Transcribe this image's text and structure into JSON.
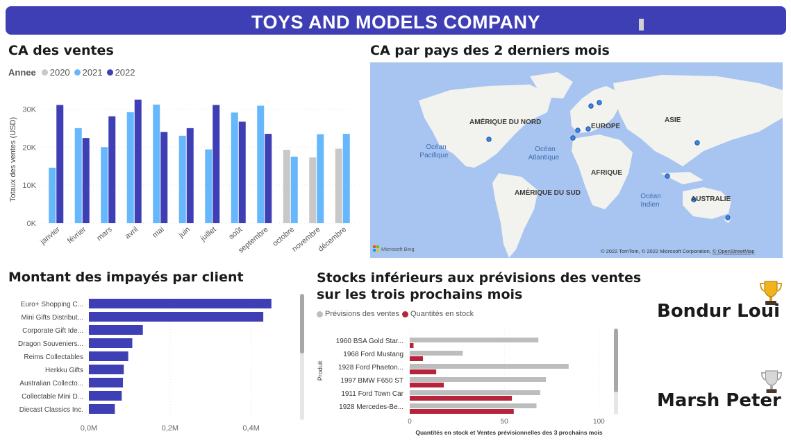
{
  "header": {
    "title": "TOYS AND MODELS COMPANY"
  },
  "sales_chart": {
    "title": "CA des ventes",
    "legend_title": "Annee",
    "y_axis_label": "Totaux des ventes (USD)",
    "y_tick_labels": [
      "0K",
      "10K",
      "20K",
      "30K"
    ],
    "colors": {
      "2020": "#c8c8c8",
      "2021": "#66b7fb",
      "2022": "#3f3fb5"
    }
  },
  "map_panel": {
    "title": "CA par pays des 2 derniers mois",
    "continents": [
      "AMÉRIQUE DU NORD",
      "EUROPE",
      "ASIE",
      "AFRIQUE",
      "AMÉRIQUE DU SUD",
      "AUSTRALIE"
    ],
    "ocean_pacific": [
      "Océan",
      "Pacifique"
    ],
    "ocean_atlantic": [
      "Océan",
      "Atlantique"
    ],
    "ocean_indian": [
      "Océan",
      "Indien"
    ],
    "bing_label": "Microsoft Bing",
    "attribution": "© 2022 TomTom, © 2022 Microsoft Corporation, ",
    "attribution_link": "© OpenStreetMap"
  },
  "unpaid_chart": {
    "title": "Montant des impayés par client",
    "x_tick_labels": [
      "0,0M",
      "0,2M",
      "0,4M"
    ],
    "color": "#3f3fb5"
  },
  "stock_chart": {
    "title_line1": "Stocks inférieurs aux prévisions des ventes",
    "title_line2": "sur les trois prochains mois",
    "legend": [
      "Prévisions des ventes",
      "Quantités en stock"
    ],
    "y_axis_label": "Produit",
    "x_axis_label": "Quantités en stock et Ventes prévisionnelles des 3 prochains mois",
    "x_tick_labels": [
      "0",
      "50",
      "100"
    ],
    "colors": {
      "forecast": "#bdbdbd",
      "stock": "#b5243a"
    }
  },
  "ranking": {
    "first": "Bondur Loui",
    "second": "Marsh Peter"
  },
  "chart_data": [
    {
      "type": "bar",
      "title": "CA des ventes",
      "ylabel": "Totaux des ventes (USD)",
      "ylim": [
        0,
        35000
      ],
      "categories": [
        "janvier",
        "février",
        "mars",
        "avril",
        "mai",
        "juin",
        "juillet",
        "août",
        "septembre",
        "octobre",
        "novembre",
        "décembre"
      ],
      "series": [
        {
          "name": "2020",
          "values": [
            null,
            null,
            null,
            null,
            null,
            null,
            null,
            null,
            null,
            19300,
            17300,
            19600
          ]
        },
        {
          "name": "2021",
          "values": [
            14600,
            25000,
            20000,
            29200,
            31200,
            23000,
            19400,
            29100,
            30900,
            17500,
            23400,
            23500
          ]
        },
        {
          "name": "2022",
          "values": [
            31100,
            22400,
            28100,
            32500,
            24000,
            25000,
            31100,
            26700,
            23500,
            null,
            null,
            null
          ]
        }
      ]
    },
    {
      "type": "bar",
      "orientation": "horizontal",
      "title": "Montant des impayés par client",
      "categories": [
        "Euro+ Shopping C...",
        "Mini Gifts Distribut...",
        "Corporate Gift Ide...",
        "Dragon Souveniers...",
        "Reims Collectables",
        "Herkku Gifts",
        "Australian Collecto...",
        "Collectable Mini D...",
        "Diecast Classics Inc."
      ],
      "values": [
        450000,
        430000,
        133000,
        107000,
        97000,
        86000,
        84000,
        81000,
        64000
      ],
      "xlim": [
        0,
        500000
      ]
    },
    {
      "type": "bar",
      "orientation": "horizontal",
      "title": "Stocks inférieurs aux prévisions des ventes sur les trois prochains mois",
      "ylabel": "Produit",
      "xlabel": "Quantités en stock et Ventes prévisionnelles des 3 prochains mois",
      "categories": [
        "1960 BSA Gold Star...",
        "1968 Ford Mustang",
        "1928 Ford Phaeton...",
        "1997 BMW F650 ST",
        "1911 Ford Town Car",
        "1928 Mercedes-Be..."
      ],
      "series": [
        {
          "name": "Prévisions des ventes",
          "values": [
            68,
            28,
            84,
            72,
            69,
            67
          ]
        },
        {
          "name": "Quantités en stock",
          "values": [
            2,
            7,
            14,
            18,
            54,
            55
          ]
        }
      ],
      "xlim": [
        0,
        105
      ]
    }
  ]
}
